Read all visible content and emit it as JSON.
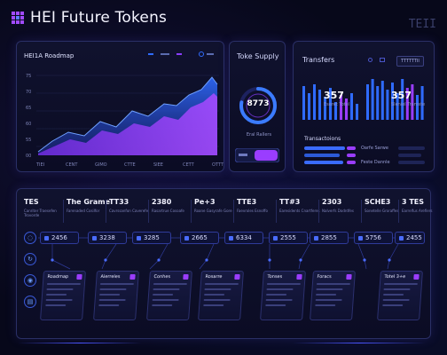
{
  "header": {
    "title": "HEI Future Tokens",
    "logo_icon": "grid-logo-icon"
  },
  "top_right": {
    "text": "TEII"
  },
  "roadmap": {
    "title": "HEI1A Roadmap",
    "y_ticks": [
      "75",
      "70",
      "65",
      "60",
      "55",
      "00"
    ],
    "x_ticks": [
      "TIEI",
      "CENT",
      "GIMO",
      "CTTE",
      "SIEE",
      "CETT",
      "OTTT"
    ]
  },
  "supply": {
    "title": "Toke Supply",
    "value": "8773",
    "subtitle": "Eral Rallers",
    "ring_fraction": 0.78
  },
  "transfers": {
    "title": "Transfers",
    "button_label": "TTTTTTII",
    "left_value": "357",
    "left_sub": "Eseret Totel",
    "right_value": "357",
    "right_sub": "Sleniel Tramste",
    "bars_title": "Transactoions",
    "rows": [
      "Oarfe Sarwe",
      "Feste Dannle"
    ]
  },
  "stats": [
    {
      "value": "TES",
      "sub": "Canriter Traesefen Trovorde"
    },
    {
      "value": "The Grame",
      "sub": "Farenaded Cosilfor"
    },
    {
      "value": "TT33",
      "sub": "Cavrssanfon Caverefe"
    },
    {
      "value": "2380",
      "sub": "Rasartrue Cosoafe"
    },
    {
      "value": "Pe+3",
      "sub": "Roane Gasyrafe Gore"
    },
    {
      "value": "TTE3",
      "sub": "Faevroles Esnoffo"
    },
    {
      "value": "TT#3",
      "sub": "Earesidents Cnartferes"
    },
    {
      "value": "2303",
      "sub": "Nalverfs Dodrdfes"
    },
    {
      "value": "SCHE3",
      "sub": "Sonetelle Groraffes"
    },
    {
      "value": "3 TES",
      "sub": "Earrelfus Arefiers"
    }
  ],
  "chips": [
    "2456",
    "3238",
    "3285",
    "2665",
    "6334",
    "2555",
    "2855",
    "5756",
    "2455"
  ],
  "cards": [
    "Roadmap",
    "Alerreles",
    "Conhes",
    "Rosarre",
    "Tonses",
    "Foracs",
    "Totel 3+e"
  ],
  "colors": {
    "accent": "#8a3dff",
    "accent2": "#2f6bff",
    "bg": "#07081a"
  }
}
